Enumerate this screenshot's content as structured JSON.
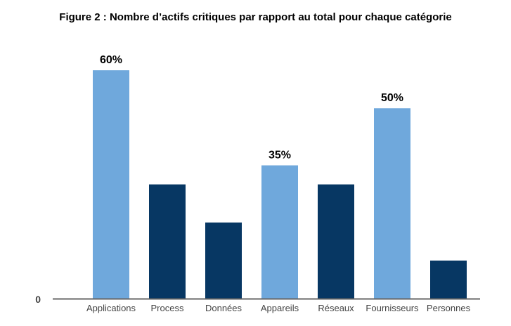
{
  "chart_data": {
    "type": "bar",
    "title": "Figure 2 : Nombre d’actifs critiques par rapport au total pour chaque catégorie",
    "xlabel": "",
    "ylabel": "",
    "categories": [
      "Applications",
      "Process",
      "Données",
      "Appareils",
      "Réseaux",
      "Fournisseurs",
      "Personnes"
    ],
    "values": [
      60,
      30,
      20,
      35,
      30,
      50,
      10
    ],
    "data_labels": [
      "60%",
      "",
      "",
      "35%",
      "",
      "50%",
      ""
    ],
    "ylim": [
      0,
      60
    ],
    "y_ticks": [
      0
    ],
    "y_tick_labels": [
      "0"
    ],
    "grid": false,
    "legend": "none",
    "colors": {
      "highlight": "#6fa8dc",
      "base": "#073763",
      "axis": "#666666",
      "tick_label": "#444444",
      "data_label": "#000000"
    },
    "bar_color_keys": [
      "highlight",
      "base",
      "base",
      "highlight",
      "base",
      "highlight",
      "base"
    ]
  }
}
